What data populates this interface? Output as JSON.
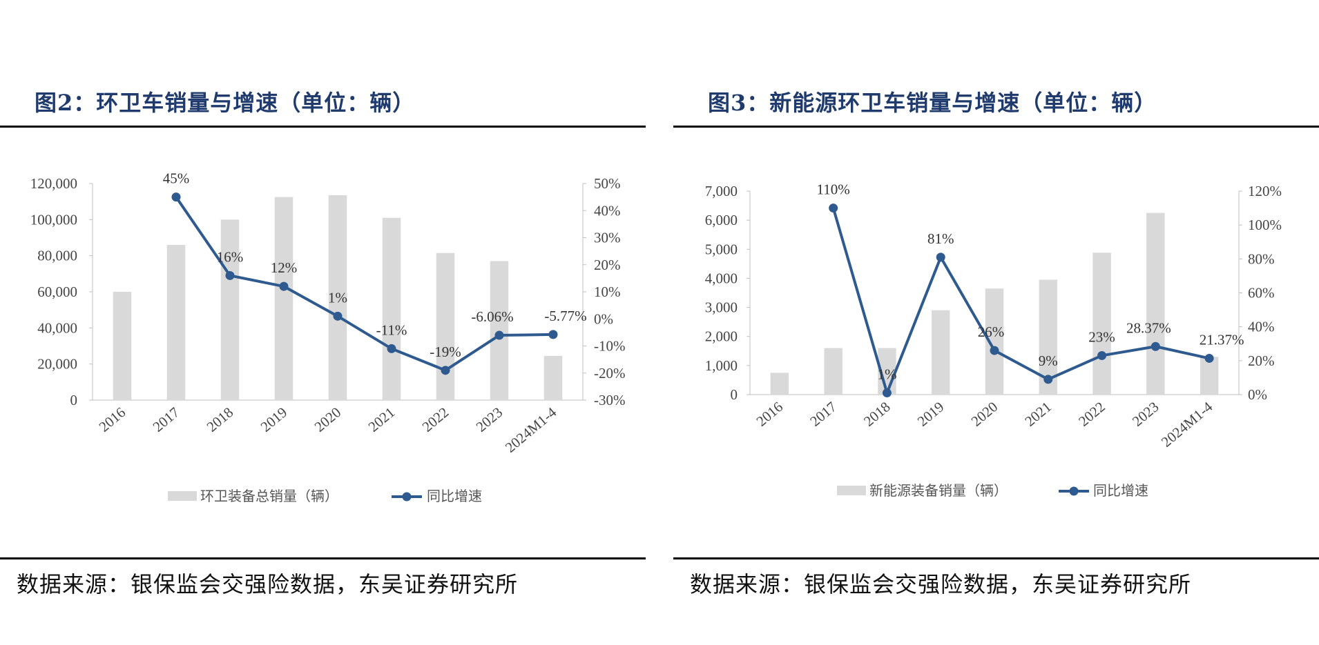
{
  "colors": {
    "bar": "#d9d9d9",
    "line": "#2e5a8f",
    "title": "#1f3a6d"
  },
  "charts": [
    {
      "title": "图2：环卫车销量与增速（单位：辆）",
      "source": "数据来源：银保监会交强险数据，东吴证券研究所"
    },
    {
      "title": "图3：新能源环卫车销量与增速（单位：辆）",
      "source": "数据来源：银保监会交强险数据，东吴证券研究所"
    }
  ],
  "chart_data": [
    {
      "type": "bar",
      "categories": [
        "2016",
        "2017",
        "2018",
        "2019",
        "2020",
        "2021",
        "2022",
        "2023",
        "2024M1-4"
      ],
      "series": [
        {
          "name": "环卫装备总销量（辆）",
          "type": "bar",
          "axis": "left",
          "values": [
            60000,
            86000,
            100000,
            112500,
            113500,
            101000,
            81500,
            77000,
            24500
          ]
        },
        {
          "name": "同比增速",
          "type": "line",
          "axis": "right",
          "values": [
            null,
            45,
            16,
            12,
            1,
            -11,
            -19,
            -6.06,
            -5.77
          ],
          "labels": [
            "",
            "45%",
            "16%",
            "12%",
            "1%",
            "-11%",
            "-19%",
            "-6.06%",
            "-5.77%"
          ]
        }
      ],
      "yleft": {
        "min": 0,
        "max": 120000,
        "step": 20000,
        "ticks": [
          "0",
          "20,000",
          "40,000",
          "60,000",
          "80,000",
          "100,000",
          "120,000"
        ]
      },
      "yright": {
        "min": -30,
        "max": 50,
        "step": 10,
        "ticks": [
          "-30%",
          "-20%",
          "-10%",
          "0%",
          "10%",
          "20%",
          "30%",
          "40%",
          "50%"
        ]
      },
      "legend_position": "bottom",
      "grid": false
    },
    {
      "type": "bar",
      "categories": [
        "2016",
        "2017",
        "2018",
        "2019",
        "2020",
        "2021",
        "2022",
        "2023",
        "2024M1-4"
      ],
      "series": [
        {
          "name": "新能源装备销量（辆）",
          "type": "bar",
          "axis": "left",
          "values": [
            750,
            1600,
            1600,
            2900,
            3650,
            3950,
            4880,
            6250,
            1300
          ]
        },
        {
          "name": "同比增速",
          "type": "line",
          "axis": "right",
          "values": [
            null,
            110,
            1,
            81,
            26,
            9,
            23,
            28.37,
            21.37
          ],
          "labels": [
            "",
            "110%",
            "1%",
            "81%",
            "26%",
            "9%",
            "23%",
            "28.37%",
            "21.37%"
          ]
        }
      ],
      "yleft": {
        "min": 0,
        "max": 7000,
        "step": 1000,
        "ticks": [
          "0",
          "1,000",
          "2,000",
          "3,000",
          "4,000",
          "5,000",
          "6,000",
          "7,000"
        ]
      },
      "yright": {
        "min": 0,
        "max": 120,
        "step": 20,
        "ticks": [
          "0%",
          "20%",
          "40%",
          "60%",
          "80%",
          "100%",
          "120%"
        ]
      },
      "legend_position": "bottom",
      "grid": false
    }
  ]
}
